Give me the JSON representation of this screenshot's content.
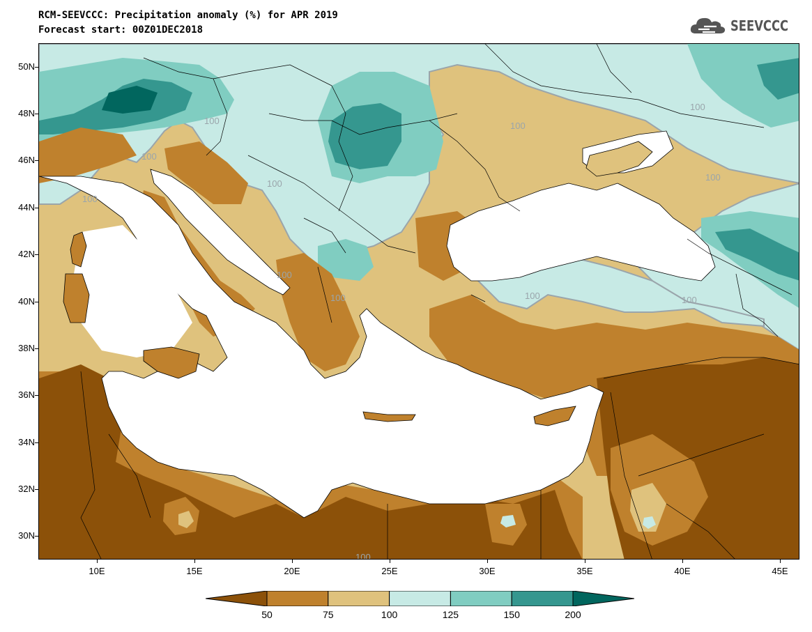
{
  "title_line1": "RCM-SEEVCCC: Precipitation anomaly (%) for APR 2019",
  "title_line2": "Forecast start: 00Z01DEC2018",
  "logo_text": "SEEVCCC",
  "logo_icon": "cloud-logo-icon",
  "map": {
    "lon_range": [
      7,
      46
    ],
    "lat_range": [
      29,
      51
    ],
    "lat_labels": [
      "50N",
      "48N",
      "46N",
      "44N",
      "42N",
      "40N",
      "38N",
      "36N",
      "34N",
      "32N",
      "30N"
    ],
    "lon_labels": [
      "10E",
      "15E",
      "20E",
      "25E",
      "30E",
      "35E",
      "40E",
      "45E"
    ],
    "contour_labels": [
      "100",
      "100",
      "100",
      "100",
      "100",
      "100",
      "100",
      "100",
      "100",
      "100",
      "100",
      "100",
      "100"
    ]
  },
  "colorbar": {
    "colors": [
      "#8c5109",
      "#bf812d",
      "#dfc27d",
      "#c7eae5",
      "#80cdc1",
      "#35978f",
      "#01665e"
    ],
    "labels": [
      "50",
      "75",
      "100",
      "125",
      "150",
      "200"
    ]
  },
  "palette": {
    "dry_dark": "#8c5109",
    "dry_mid": "#bf812d",
    "dry_light": "#dfc27d",
    "wet_light": "#c7eae5",
    "wet_mid": "#80cdc1",
    "wet_dark": "#35978f",
    "wet_darkest": "#01665e",
    "contour": "#9aa5ab"
  }
}
